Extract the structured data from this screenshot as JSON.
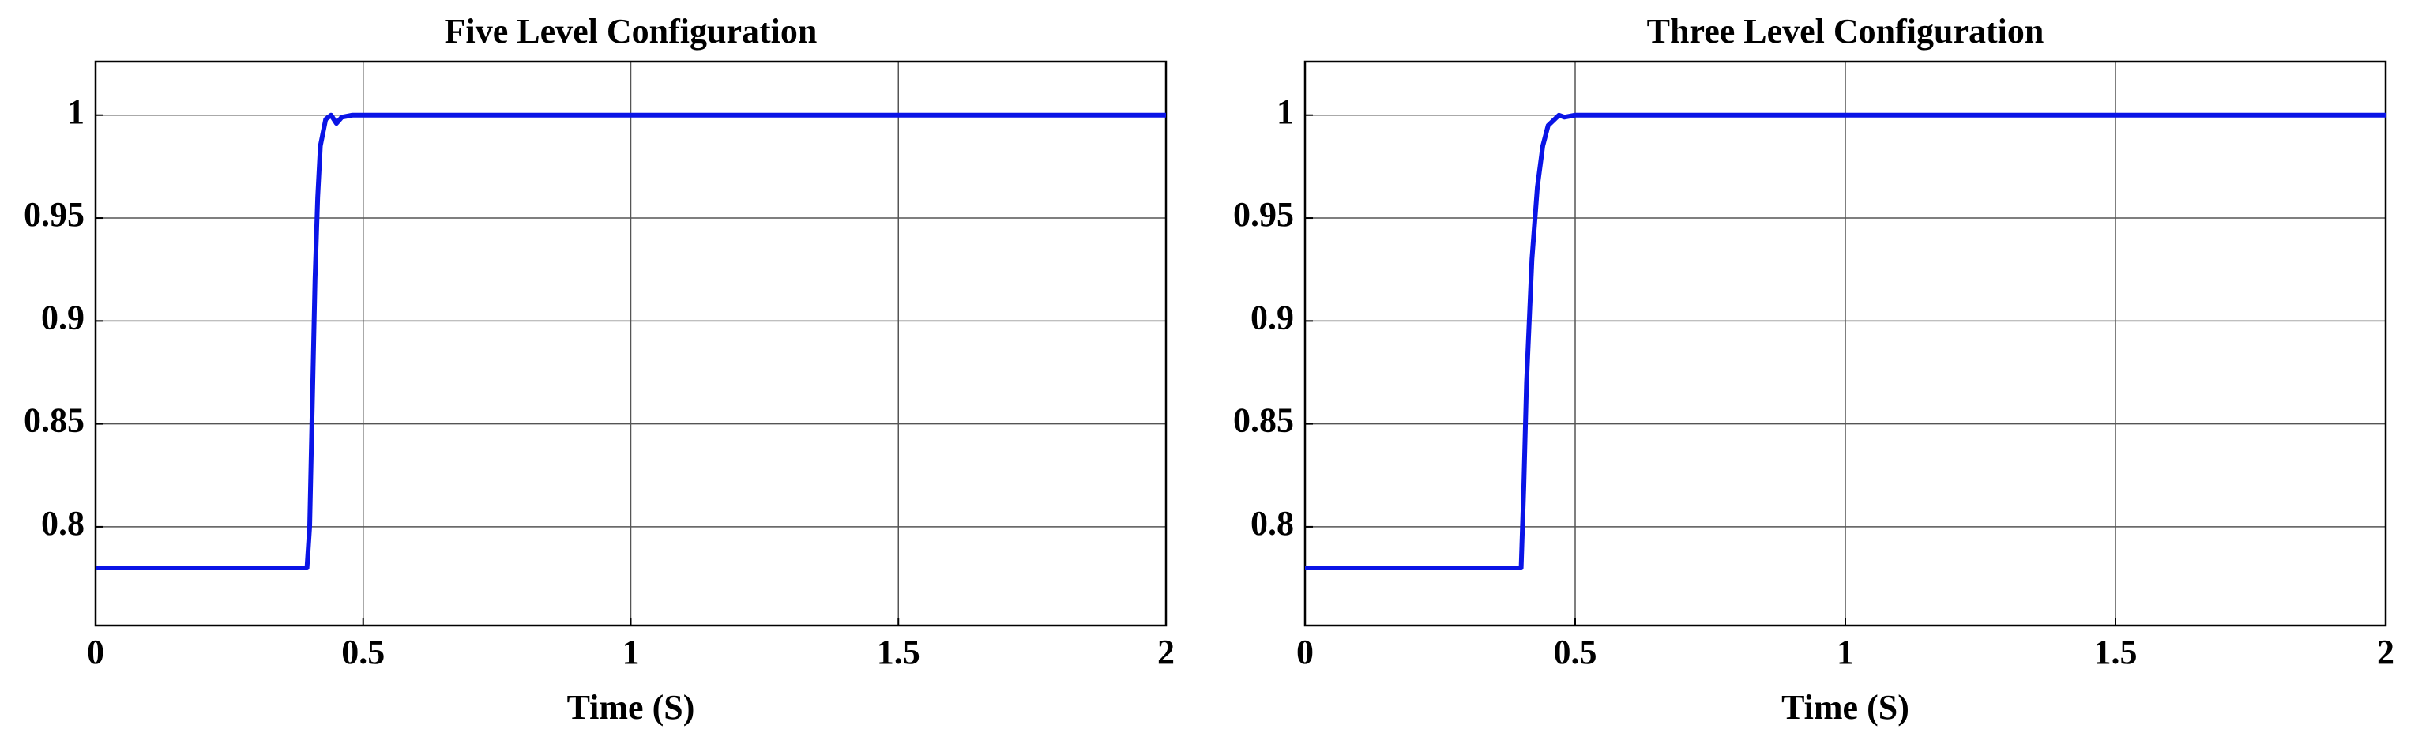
{
  "chart_data": [
    {
      "type": "line",
      "title": "Five Level Configuration",
      "xlabel": "Time (S)",
      "x": [
        0,
        0.395,
        0.4,
        0.405,
        0.41,
        0.415,
        0.42,
        0.43,
        0.44,
        0.45,
        0.46,
        0.48,
        2
      ],
      "values": [
        0.78,
        0.78,
        0.8,
        0.86,
        0.92,
        0.96,
        0.985,
        0.998,
        1.0,
        0.996,
        0.999,
        1.0,
        1.0
      ],
      "color": "#0a14e6",
      "xlim": [
        0,
        2
      ],
      "xticks": [
        0,
        0.5,
        1,
        1.5,
        2
      ],
      "ylim": [
        0.752,
        1.026
      ],
      "yticks": [
        0.8,
        0.85,
        0.9,
        0.95,
        1
      ],
      "grid": true
    },
    {
      "type": "line",
      "title": "Three Level Configuration",
      "xlabel": "Time (S)",
      "x": [
        0,
        0.4,
        0.405,
        0.41,
        0.42,
        0.43,
        0.44,
        0.45,
        0.47,
        0.48,
        0.5,
        2
      ],
      "values": [
        0.78,
        0.78,
        0.82,
        0.87,
        0.93,
        0.965,
        0.985,
        0.995,
        1.0,
        0.999,
        1.0,
        1.0
      ],
      "color": "#0a14e6",
      "xlim": [
        0,
        2
      ],
      "xticks": [
        0,
        0.5,
        1,
        1.5,
        2
      ],
      "ylim": [
        0.752,
        1.026
      ],
      "yticks": [
        0.8,
        0.85,
        0.9,
        0.95,
        1
      ],
      "grid": true
    }
  ]
}
